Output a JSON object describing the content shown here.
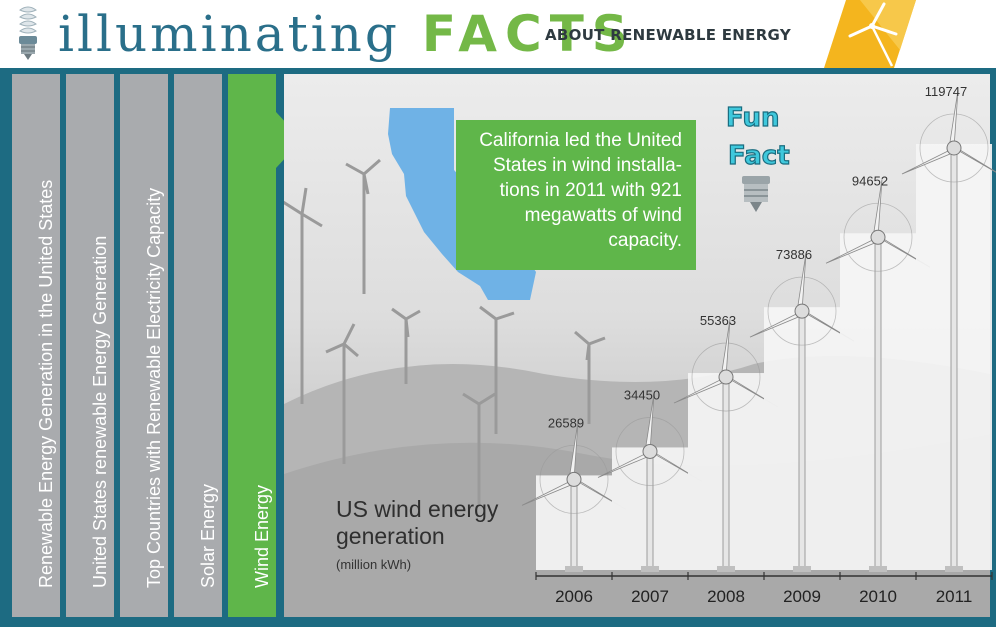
{
  "header": {
    "brand_word": "illuminating",
    "brand_facts": "FACTS",
    "subtitle": "ABOUT RENEWABLE ENERGY"
  },
  "tabs": [
    {
      "label": "Renewable Energy Generation in the United States",
      "active": false
    },
    {
      "label": "United States renewable Energy Generation",
      "active": false
    },
    {
      "label": "Top Countries with Renewable Electricity Capacity",
      "active": false
    },
    {
      "label": "Solar Energy",
      "active": false
    },
    {
      "label": "Wind Energy",
      "active": true
    }
  ],
  "fun_fact": {
    "badge_line1": "Fun",
    "badge_line2": "Fact",
    "lines": [
      "California led the United",
      "States in wind installa-",
      "tions in 2011 with 921",
      "megawatts of wind",
      "capacity."
    ]
  },
  "chart_data": {
    "type": "bar",
    "title_line1": "US wind energy",
    "title_line2": "generation",
    "unit": "(million kWh)",
    "categories": [
      "2006",
      "2007",
      "2008",
      "2009",
      "2010",
      "2011"
    ],
    "values": [
      26589,
      34450,
      55363,
      73886,
      94652,
      119747
    ]
  },
  "colors": {
    "accent_green": "#5fb64a",
    "frame_teal": "#1d6b82",
    "tab_gray": "#a9abae",
    "brand_blue": "#2a6f8a",
    "california_blue": "#6fb2e6"
  }
}
